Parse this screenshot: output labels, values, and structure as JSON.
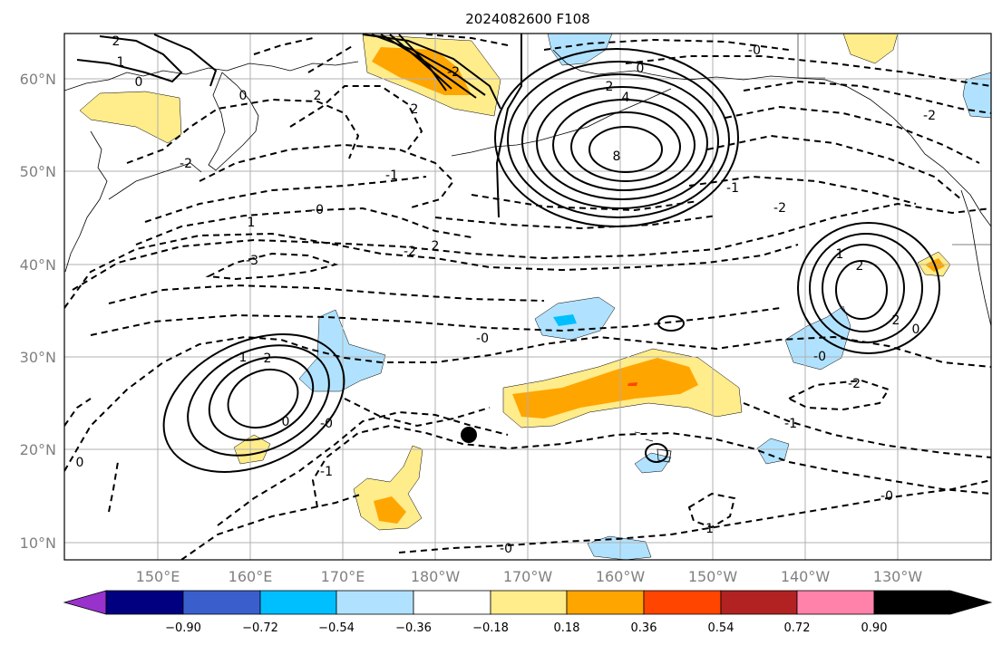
{
  "title": "2024082600 F108",
  "map": {
    "lon_labels": [
      "150°E",
      "160°E",
      "170°E",
      "180°W",
      "170°W",
      "160°W",
      "150°W",
      "140°W",
      "130°W"
    ],
    "lat_labels": [
      "60°N",
      "50°N",
      "40°N",
      "30°N",
      "20°N",
      "10°N"
    ],
    "gridlines": true
  },
  "colorbar": {
    "tick_labels": [
      "−0.90",
      "−0.72",
      "−0.54",
      "−0.36",
      "−0.18",
      "0.18",
      "0.36",
      "0.54",
      "0.72",
      "0.90"
    ],
    "colors": [
      "#9932CC",
      "#000080",
      "#3A5FCD",
      "#00BFFF",
      "#B0E2FF",
      "#FFFFFF",
      "#FFEC8B",
      "#FFA500",
      "#FF4500",
      "#B22222",
      "#FF82AB"
    ],
    "extend": "both"
  },
  "contour_labels": [
    "2",
    "1",
    "0",
    "0",
    "2",
    "2",
    "-2",
    "-1",
    "-0",
    "1",
    "2",
    "-3",
    "-2",
    "-2",
    "0",
    "2",
    "4",
    "8",
    "-0",
    "-2",
    "-1",
    "1",
    "2",
    "2",
    "0",
    "-2",
    "1",
    "2",
    "-0",
    "-0",
    "-0",
    "-2",
    "-1",
    "-1",
    "-0",
    "-1",
    "-0",
    "0",
    "0"
  ],
  "marker": "black-dot"
}
